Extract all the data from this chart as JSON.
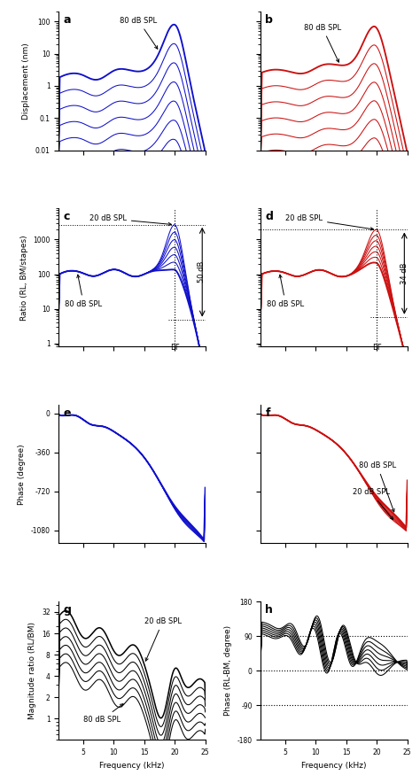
{
  "blue_color": "#1010CC",
  "red_color": "#CC1010",
  "black_color": "#000000",
  "n_curves": 7,
  "freq_min": 1,
  "freq_max": 25,
  "panel_labels": [
    "a",
    "b",
    "c",
    "d",
    "e",
    "f",
    "g",
    "h"
  ],
  "label_80db": "80 dB SPL",
  "label_20db": "20 dB SPL",
  "label_BF": "BF",
  "label_50dB": "50 dB",
  "label_34dB": "34 dB",
  "xlabel": "Frequency (kHz)",
  "ylabel_a": "Displacement (nm)",
  "ylabel_c": "Ratio (RL, BM/stapes)",
  "ylabel_e": "Phase (degree)",
  "ylabel_g": "Magnitude ratio (RL/BM)",
  "ylabel_h": "Phase (RL-BM, degree)"
}
